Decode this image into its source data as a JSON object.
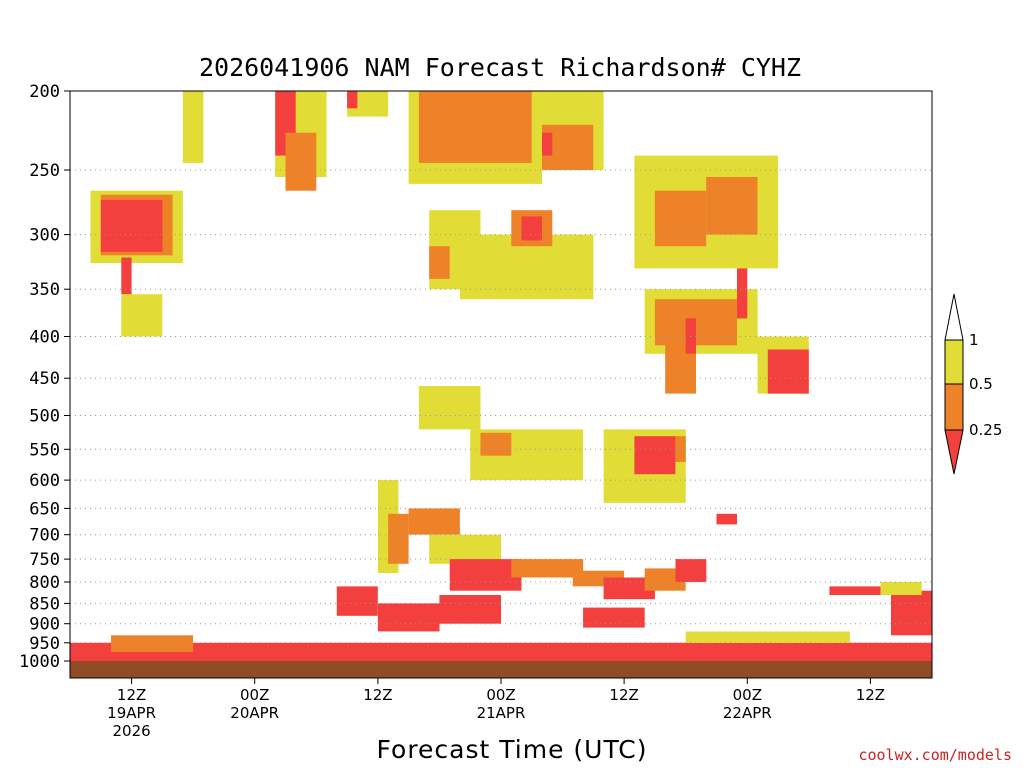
{
  "chart_data": {
    "type": "heatmap",
    "title": "2026041906 NAM Forecast Richardson# CYHZ",
    "xlabel": "Forecast Time (UTC)",
    "ylabel": "",
    "credit": "coolwx.com/models",
    "y_axis": {
      "scale": "pressure (hPa), inverted",
      "range": [
        1000,
        200
      ],
      "ticks": [
        "200",
        "250",
        "300",
        "350",
        "400",
        "450",
        "500",
        "550",
        "600",
        "650",
        "700",
        "750",
        "800",
        "850",
        "900",
        "950",
        "1000"
      ]
    },
    "x_axis": {
      "units": "forecast hour from 2026041906",
      "range": [
        0,
        84
      ],
      "ticks": [
        {
          "hour": 6,
          "lines": [
            "12Z",
            "19APR",
            "2026"
          ]
        },
        {
          "hour": 18,
          "lines": [
            "00Z",
            "20APR"
          ]
        },
        {
          "hour": 30,
          "lines": [
            "12Z"
          ]
        },
        {
          "hour": 42,
          "lines": [
            "00Z",
            "21APR"
          ]
        },
        {
          "hour": 54,
          "lines": [
            "12Z"
          ]
        },
        {
          "hour": 66,
          "lines": [
            "00Z",
            "22APR"
          ]
        },
        {
          "hour": 78,
          "lines": [
            "12Z"
          ]
        }
      ]
    },
    "legend": {
      "placement": "right",
      "labels": [
        "1",
        "0.5",
        "0.25"
      ],
      "bins": [
        {
          "range": "0.5 - 1",
          "color": "#e2dc36"
        },
        {
          "range": "0.25 - 0.5",
          "color": "#ee8228"
        },
        {
          "range": "< 0.25",
          "color": "#f43f3f"
        }
      ]
    },
    "colors": {
      "high": "#e2dc36",
      "mid": "#ee8228",
      "low": "#f43f3f",
      "ground": "#8f4c27",
      "grid": "#9a9a9a"
    },
    "regions": [
      {
        "level": "high",
        "hours": [
          2,
          11
        ],
        "pressure": [
          265,
          325
        ]
      },
      {
        "level": "mid",
        "hours": [
          3,
          10
        ],
        "pressure": [
          268,
          318
        ]
      },
      {
        "level": "low",
        "hours": [
          3,
          9
        ],
        "pressure": [
          272,
          315
        ]
      },
      {
        "level": "low",
        "hours": [
          5,
          6
        ],
        "pressure": [
          320,
          355
        ]
      },
      {
        "level": "high",
        "hours": [
          5,
          9
        ],
        "pressure": [
          355,
          400
        ]
      },
      {
        "level": "high",
        "hours": [
          11,
          13
        ],
        "pressure": [
          200,
          245
        ]
      },
      {
        "level": "high",
        "hours": [
          20,
          25
        ],
        "pressure": [
          200,
          255
        ]
      },
      {
        "level": "low",
        "hours": [
          20,
          22
        ],
        "pressure": [
          200,
          240
        ]
      },
      {
        "level": "mid",
        "hours": [
          21,
          24
        ],
        "pressure": [
          225,
          265
        ]
      },
      {
        "level": "high",
        "hours": [
          27,
          31
        ],
        "pressure": [
          200,
          215
        ]
      },
      {
        "level": "low",
        "hours": [
          27,
          28
        ],
        "pressure": [
          200,
          210
        ]
      },
      {
        "level": "high",
        "hours": [
          33,
          46
        ],
        "pressure": [
          200,
          260
        ]
      },
      {
        "level": "mid",
        "hours": [
          34,
          45
        ],
        "pressure": [
          200,
          245
        ]
      },
      {
        "level": "high",
        "hours": [
          45,
          52
        ],
        "pressure": [
          200,
          250
        ]
      },
      {
        "level": "mid",
        "hours": [
          46,
          51
        ],
        "pressure": [
          220,
          250
        ]
      },
      {
        "level": "low",
        "hours": [
          46,
          47
        ],
        "pressure": [
          225,
          240
        ]
      },
      {
        "level": "high",
        "hours": [
          35,
          40
        ],
        "pressure": [
          280,
          350
        ]
      },
      {
        "level": "mid",
        "hours": [
          35,
          37
        ],
        "pressure": [
          310,
          340
        ]
      },
      {
        "level": "low",
        "hours": [
          38,
          39
        ],
        "pressure": [
          320,
          345
        ]
      },
      {
        "level": "high",
        "hours": [
          38,
          51
        ],
        "pressure": [
          300,
          360
        ]
      },
      {
        "level": "mid",
        "hours": [
          43,
          47
        ],
        "pressure": [
          280,
          310
        ]
      },
      {
        "level": "low",
        "hours": [
          44,
          46
        ],
        "pressure": [
          285,
          305
        ]
      },
      {
        "level": "high",
        "hours": [
          55,
          69
        ],
        "pressure": [
          240,
          330
        ]
      },
      {
        "level": "mid",
        "hours": [
          62,
          67
        ],
        "pressure": [
          255,
          300
        ]
      },
      {
        "level": "low",
        "hours": [
          58,
          61
        ],
        "pressure": [
          270,
          300
        ]
      },
      {
        "level": "mid",
        "hours": [
          57,
          62
        ],
        "pressure": [
          265,
          310
        ]
      },
      {
        "level": "high",
        "hours": [
          56,
          67
        ],
        "pressure": [
          350,
          420
        ]
      },
      {
        "level": "mid",
        "hours": [
          57,
          65
        ],
        "pressure": [
          360,
          410
        ]
      },
      {
        "level": "low",
        "hours": [
          65,
          66
        ],
        "pressure": [
          330,
          380
        ]
      },
      {
        "level": "mid",
        "hours": [
          58,
          61
        ],
        "pressure": [
          400,
          470
        ]
      },
      {
        "level": "low",
        "hours": [
          60,
          61
        ],
        "pressure": [
          380,
          420
        ]
      },
      {
        "level": "high",
        "hours": [
          67,
          72
        ],
        "pressure": [
          400,
          470
        ]
      },
      {
        "level": "low",
        "hours": [
          68,
          72
        ],
        "pressure": [
          415,
          470
        ]
      },
      {
        "level": "high",
        "hours": [
          39,
          50
        ],
        "pressure": [
          520,
          600
        ]
      },
      {
        "level": "mid",
        "hours": [
          40,
          43
        ],
        "pressure": [
          525,
          560
        ]
      },
      {
        "level": "high",
        "hours": [
          52,
          60
        ],
        "pressure": [
          520,
          640
        ]
      },
      {
        "level": "low",
        "hours": [
          55,
          59
        ],
        "pressure": [
          530,
          590
        ]
      },
      {
        "level": "mid",
        "hours": [
          59,
          60
        ],
        "pressure": [
          530,
          570
        ]
      },
      {
        "level": "low",
        "hours": [
          63,
          65
        ],
        "pressure": [
          660,
          680
        ]
      },
      {
        "level": "high",
        "hours": [
          34,
          40
        ],
        "pressure": [
          460,
          520
        ]
      },
      {
        "level": "high",
        "hours": [
          30,
          32
        ],
        "pressure": [
          600,
          780
        ]
      },
      {
        "level": "mid",
        "hours": [
          31,
          33
        ],
        "pressure": [
          660,
          760
        ]
      },
      {
        "level": "mid",
        "hours": [
          33,
          38
        ],
        "pressure": [
          650,
          700
        ]
      },
      {
        "level": "high",
        "hours": [
          35,
          42
        ],
        "pressure": [
          700,
          760
        ]
      },
      {
        "level": "low",
        "hours": [
          37,
          44
        ],
        "pressure": [
          750,
          820
        ]
      },
      {
        "level": "mid",
        "hours": [
          43,
          50
        ],
        "pressure": [
          750,
          790
        ]
      },
      {
        "level": "mid",
        "hours": [
          49,
          54
        ],
        "pressure": [
          775,
          810
        ]
      },
      {
        "level": "low",
        "hours": [
          52,
          57
        ],
        "pressure": [
          790,
          840
        ]
      },
      {
        "level": "mid",
        "hours": [
          56,
          60
        ],
        "pressure": [
          770,
          820
        ]
      },
      {
        "level": "low",
        "hours": [
          59,
          62
        ],
        "pressure": [
          750,
          800
        ]
      },
      {
        "level": "low",
        "hours": [
          26,
          30
        ],
        "pressure": [
          810,
          880
        ]
      },
      {
        "level": "low",
        "hours": [
          30,
          36
        ],
        "pressure": [
          850,
          920
        ]
      },
      {
        "level": "low",
        "hours": [
          36,
          42
        ],
        "pressure": [
          830,
          900
        ]
      },
      {
        "level": "low",
        "hours": [
          50,
          56
        ],
        "pressure": [
          860,
          910
        ]
      },
      {
        "level": "low",
        "hours": [
          74,
          79
        ],
        "pressure": [
          810,
          830
        ]
      },
      {
        "level": "low",
        "hours": [
          80,
          84
        ],
        "pressure": [
          820,
          930
        ]
      },
      {
        "level": "high",
        "hours": [
          79,
          83
        ],
        "pressure": [
          800,
          830
        ]
      },
      {
        "level": "low",
        "hours": [
          0,
          84
        ],
        "pressure": [
          950,
          1000
        ]
      },
      {
        "level": "mid",
        "hours": [
          4,
          12
        ],
        "pressure": [
          930,
          975
        ]
      },
      {
        "level": "high",
        "hours": [
          60,
          76
        ],
        "pressure": [
          920,
          950
        ]
      }
    ]
  }
}
